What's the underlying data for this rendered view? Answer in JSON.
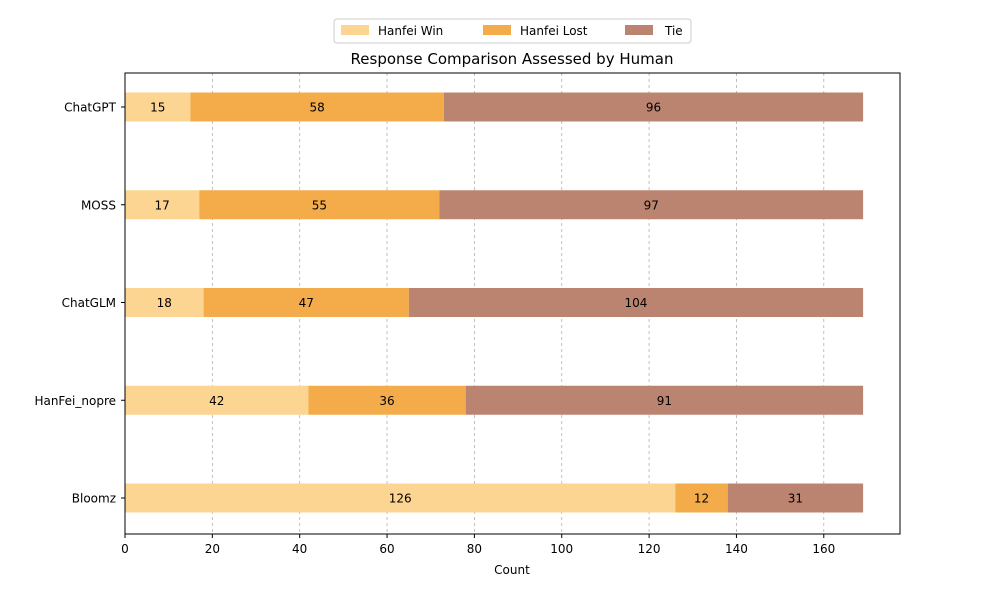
{
  "chart_data": {
    "type": "bar",
    "orientation": "horizontal",
    "stacked": true,
    "title": "Response Comparison Assessed by Human",
    "xlabel": "Count",
    "ylabel": "",
    "categories": [
      "ChatGPT",
      "MOSS",
      "ChatGLM",
      "HanFei_nopre",
      "Bloomz"
    ],
    "series": [
      {
        "name": "Hanfei Win",
        "values": [
          15,
          17,
          18,
          42,
          126
        ],
        "color": "#fbd591"
      },
      {
        "name": "Hanfei Lost",
        "values": [
          58,
          55,
          47,
          36,
          12
        ],
        "color": "#f4ac4b"
      },
      {
        "name": "Tie",
        "values": [
          96,
          97,
          104,
          91,
          31
        ],
        "color": "#bb8471"
      }
    ],
    "xlim": [
      0,
      177.45
    ],
    "xticks": [
      0,
      20,
      40,
      60,
      80,
      100,
      120,
      140,
      160
    ],
    "grid": "x-axis dashed",
    "legend": "top-center"
  }
}
